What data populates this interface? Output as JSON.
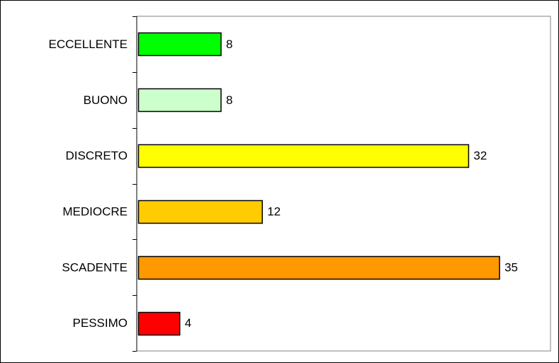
{
  "chart_data": {
    "type": "bar",
    "orientation": "horizontal",
    "categories": [
      "ECCELLENTE",
      "BUONO",
      "DISCRETO",
      "MEDIOCRE",
      "SCADENTE",
      "PESSIMO"
    ],
    "values": [
      8,
      8,
      32,
      12,
      35,
      4
    ],
    "value_labels": [
      "8",
      "8",
      "32",
      "12",
      "35",
      "4"
    ],
    "bar_colors": [
      "#00FF00",
      "#CCFFCC",
      "#FFFF00",
      "#FFCC00",
      "#FF9900",
      "#FF0000"
    ],
    "title": "",
    "xlabel": "",
    "ylabel": "",
    "xlim": [
      0,
      40
    ],
    "grid": false,
    "legend": "none",
    "bar_outline_color": "#000000",
    "plot_border_color": "#808080"
  }
}
